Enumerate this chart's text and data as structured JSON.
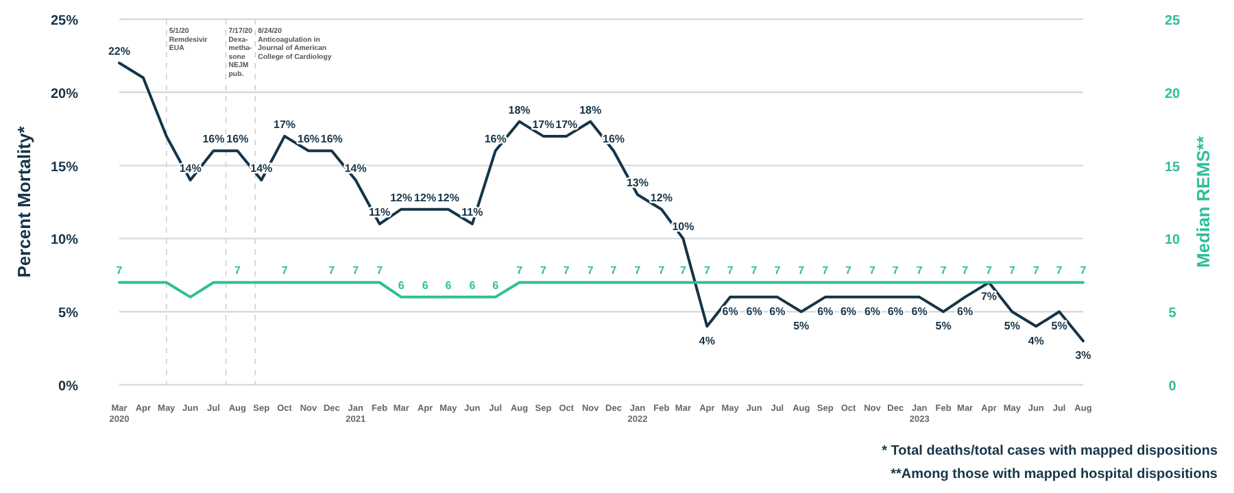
{
  "chart_data": {
    "type": "line",
    "ylabel": "Percent Mortality*",
    "y2label": "Median REMS**",
    "x": [
      "2020-03",
      "2020-04",
      "2020-05",
      "2020-06",
      "2020-07",
      "2020-08",
      "2020-09",
      "2020-10",
      "2020-11",
      "2020-12",
      "2021-01",
      "2021-02",
      "2021-03",
      "2021-04",
      "2021-05",
      "2021-06",
      "2021-07",
      "2021-08",
      "2021-09",
      "2021-10",
      "2021-11",
      "2021-12",
      "2022-01",
      "2022-02",
      "2022-03",
      "2022-04",
      "2022-05",
      "2022-06",
      "2022-07",
      "2022-08",
      "2022-09",
      "2022-10",
      "2022-11",
      "2022-12",
      "2023-01",
      "2023-02",
      "2023-03",
      "2023-04",
      "2023-05",
      "2023-06",
      "2023-07",
      "2023-08"
    ],
    "xlim": [
      "2020-03",
      "2023-08"
    ],
    "xticks": [
      {
        "value": "2020-03",
        "label": "Mar\n2020"
      },
      {
        "value": "2020-04",
        "label": "Apr"
      },
      {
        "value": "2020-05",
        "label": "May"
      },
      {
        "value": "2020-06",
        "label": "Jun"
      },
      {
        "value": "2020-07",
        "label": "Jul"
      },
      {
        "value": "2020-08",
        "label": "Aug"
      },
      {
        "value": "2020-09",
        "label": "Sep"
      },
      {
        "value": "2020-10",
        "label": "Oct"
      },
      {
        "value": "2020-11",
        "label": "Nov"
      },
      {
        "value": "2020-12",
        "label": "Dec"
      },
      {
        "value": "2021-01",
        "label": "Jan\n2021"
      },
      {
        "value": "2021-02",
        "label": "Feb"
      },
      {
        "value": "2021-03",
        "label": "Mar"
      },
      {
        "value": "2021-04",
        "label": "Apr"
      },
      {
        "value": "2021-05",
        "label": "May"
      },
      {
        "value": "2021-06",
        "label": "Jun"
      },
      {
        "value": "2021-07",
        "label": "Jul"
      },
      {
        "value": "2021-08",
        "label": "Aug"
      },
      {
        "value": "2021-09",
        "label": "Sep"
      },
      {
        "value": "2021-10",
        "label": "Oct"
      },
      {
        "value": "2021-11",
        "label": "Nov"
      },
      {
        "value": "2021-12",
        "label": "Dec"
      },
      {
        "value": "2022-01",
        "label": "Jan\n2022"
      },
      {
        "value": "2022-02",
        "label": "Feb"
      },
      {
        "value": "2022-03",
        "label": "Mar"
      },
      {
        "value": "2022-04",
        "label": "Apr"
      },
      {
        "value": "2022-05",
        "label": "May"
      },
      {
        "value": "2022-06",
        "label": "Jun"
      },
      {
        "value": "2022-07",
        "label": "Jul"
      },
      {
        "value": "2022-08",
        "label": "Aug"
      },
      {
        "value": "2022-09",
        "label": "Sep"
      },
      {
        "value": "2022-10",
        "label": "Oct"
      },
      {
        "value": "2022-11",
        "label": "Nov"
      },
      {
        "value": "2022-12",
        "label": "Dec"
      },
      {
        "value": "2023-01",
        "label": "Jan\n2023"
      },
      {
        "value": "2023-02",
        "label": "Feb"
      },
      {
        "value": "2023-03",
        "label": "Mar"
      },
      {
        "value": "2023-04",
        "label": "Apr"
      },
      {
        "value": "2023-05",
        "label": "May"
      },
      {
        "value": "2023-06",
        "label": "Jun"
      },
      {
        "value": "2023-07",
        "label": "Jul"
      },
      {
        "value": "2023-08",
        "label": "Aug"
      }
    ],
    "ylim": [
      0,
      25
    ],
    "yticks": [
      {
        "value": 0,
        "label": "0%"
      },
      {
        "value": 5,
        "label": "5%"
      },
      {
        "value": 10,
        "label": "10%"
      },
      {
        "value": 15,
        "label": "15%"
      },
      {
        "value": 20,
        "label": "20%"
      },
      {
        "value": 25,
        "label": "25%"
      }
    ],
    "y2lim": [
      0,
      25
    ],
    "y2ticks": [
      0,
      5,
      10,
      15,
      20,
      25
    ],
    "grid": "y",
    "marker": "none",
    "line_style": "solid",
    "series": [
      {
        "color": "#163447",
        "values": [
          22,
          21,
          17,
          14,
          16,
          16,
          14,
          17,
          16,
          16,
          14,
          11,
          12,
          12,
          12,
          11,
          16,
          18,
          17,
          17,
          18,
          16,
          13,
          12,
          10,
          4,
          6,
          6,
          6,
          5,
          6,
          6,
          6,
          6,
          6,
          5,
          6,
          7,
          5,
          4,
          5,
          3
        ],
        "value_labels": [
          "22%",
          null,
          null,
          "14%",
          "16%",
          "16%",
          "14%",
          "17%",
          "16%",
          "16%",
          "14%",
          "11%",
          "12%",
          "12%",
          "12%",
          "11%",
          "16%",
          "18%",
          "17%",
          "17%",
          "18%",
          "16%",
          "13%",
          "12%",
          "10%",
          "4%",
          "6%",
          "6%",
          "6%",
          "5%",
          "6%",
          "6%",
          "6%",
          "6%",
          "6%",
          "5%",
          "6%",
          "7%",
          "5%",
          "4%",
          "5%",
          "3%"
        ]
      },
      {
        "color": "#2ebf98",
        "axis": "y2",
        "values": [
          7,
          7,
          7,
          6,
          7,
          7,
          7,
          7,
          7,
          7,
          7,
          7,
          6,
          6,
          6,
          6,
          6,
          7,
          7,
          7,
          7,
          7,
          7,
          7,
          7,
          7,
          7,
          7,
          7,
          7,
          7,
          7,
          7,
          7,
          7,
          7,
          7,
          7,
          7,
          7,
          7,
          7
        ],
        "value_labels": [
          "7",
          null,
          null,
          null,
          null,
          "7",
          null,
          "7",
          null,
          "7",
          "7",
          "7",
          "6",
          "6",
          "6",
          "6",
          "6",
          "7",
          "7",
          "7",
          "7",
          "7",
          "7",
          "7",
          "7",
          "7",
          "7",
          "7",
          "7",
          "7",
          "7",
          "7",
          "7",
          "7",
          "7",
          "7",
          "7",
          "7",
          "7",
          "7",
          "7",
          "7"
        ]
      }
    ],
    "ref_lines": [
      {
        "axis": "x",
        "value": "2020-05-01",
        "label": "5/1/20\nRemdesivir\nEUA",
        "color": "#d0d0d0",
        "line_style": "dashed"
      },
      {
        "axis": "x",
        "value": "2020-07-17",
        "label": "7/17/20\nDexa-\nmetha-\nsone\nNEJM\npub.",
        "color": "#d0d0d0",
        "line_style": "dashed"
      },
      {
        "axis": "x",
        "value": "2020-08-24",
        "label": "8/24/20\nAnticoagulation in\nJournal of American\nCollege of Cardiology",
        "color": "#d0d0d0",
        "line_style": "dashed"
      }
    ],
    "annotations": [
      "* Total deaths/total cases with mapped dispositions",
      "**Among those with mapped hospital dispositions"
    ]
  }
}
